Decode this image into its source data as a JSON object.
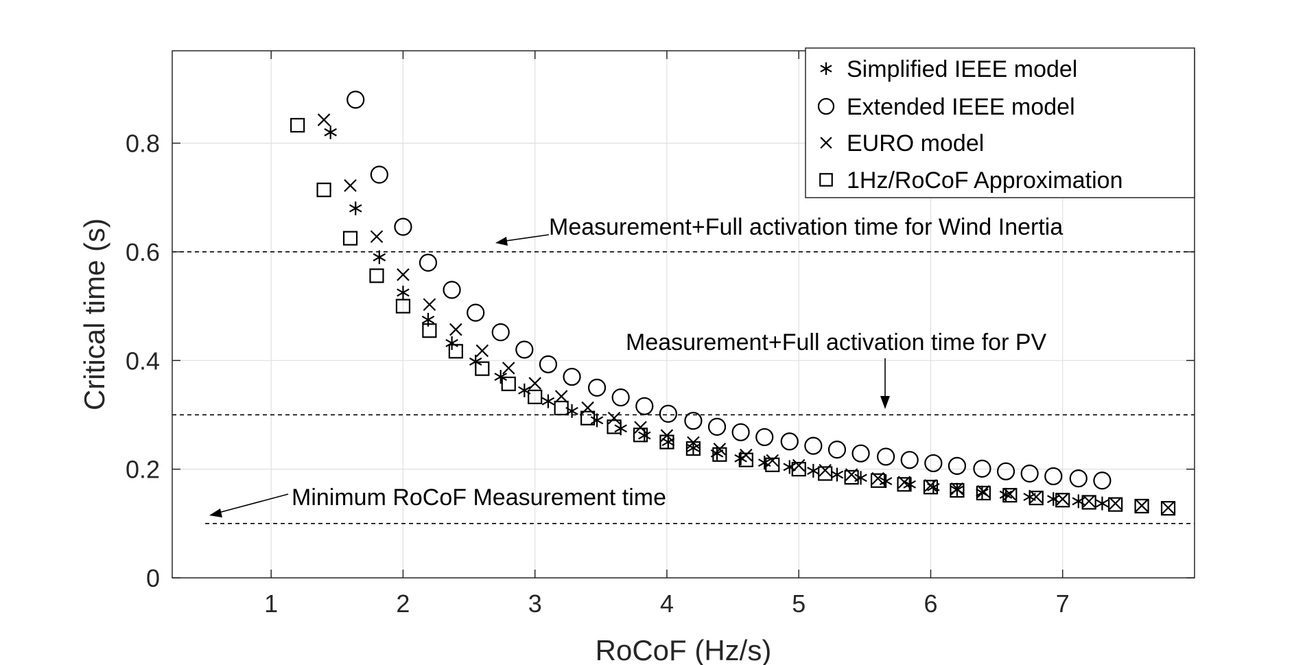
{
  "chart_data": {
    "type": "scatter",
    "xlabel": "RoCoF (Hz/s)",
    "ylabel": "Critical time (s)",
    "xlim": [
      0.25,
      8.0
    ],
    "ylim": [
      0,
      0.97
    ],
    "xticks": [
      1,
      2,
      3,
      4,
      5,
      6,
      7
    ],
    "yticks": [
      0,
      0.2,
      0.4,
      0.6,
      0.8
    ],
    "xtick_labels": [
      "1",
      "2",
      "3",
      "4",
      "5",
      "6",
      "7"
    ],
    "ytick_labels": [
      "0",
      "0.2",
      "0.4",
      "0.6",
      "0.8"
    ],
    "grid": true,
    "legend_position": "top-right",
    "series": [
      {
        "name": "Simplified IEEE model",
        "marker": "asterisk",
        "x": [
          1.45,
          1.64,
          1.82,
          2.0,
          2.19,
          2.37,
          2.55,
          2.74,
          2.92,
          3.1,
          3.28,
          3.47,
          3.65,
          3.83,
          4.01,
          4.2,
          4.38,
          4.56,
          4.74,
          4.93,
          5.11,
          5.29,
          5.47,
          5.66,
          5.84,
          6.02,
          6.2,
          6.39,
          6.57,
          6.75,
          6.93,
          7.12,
          7.3
        ],
        "y": [
          0.82,
          0.68,
          0.59,
          0.525,
          0.475,
          0.432,
          0.398,
          0.37,
          0.345,
          0.325,
          0.307,
          0.29,
          0.275,
          0.262,
          0.25,
          0.239,
          0.229,
          0.22,
          0.212,
          0.204,
          0.197,
          0.19,
          0.184,
          0.178,
          0.172,
          0.167,
          0.162,
          0.157,
          0.153,
          0.149,
          0.145,
          0.141,
          0.137
        ]
      },
      {
        "name": "Extended IEEE model",
        "marker": "circle",
        "x": [
          1.64,
          1.82,
          2.0,
          2.19,
          2.37,
          2.55,
          2.74,
          2.92,
          3.1,
          3.28,
          3.47,
          3.65,
          3.83,
          4.01,
          4.2,
          4.38,
          4.56,
          4.74,
          4.93,
          5.11,
          5.29,
          5.47,
          5.66,
          5.84,
          6.02,
          6.2,
          6.39,
          6.57,
          6.75,
          6.93,
          7.12,
          7.3
        ],
        "y": [
          0.88,
          0.742,
          0.646,
          0.58,
          0.53,
          0.488,
          0.452,
          0.42,
          0.393,
          0.37,
          0.35,
          0.332,
          0.316,
          0.302,
          0.289,
          0.278,
          0.268,
          0.259,
          0.251,
          0.243,
          0.236,
          0.229,
          0.223,
          0.217,
          0.211,
          0.206,
          0.201,
          0.196,
          0.192,
          0.187,
          0.183,
          0.179
        ]
      },
      {
        "name": "EURO model",
        "marker": "x",
        "x": [
          1.4,
          1.6,
          1.8,
          2.0,
          2.2,
          2.4,
          2.6,
          2.8,
          3.0,
          3.2,
          3.4,
          3.6,
          3.8,
          4.0,
          4.2,
          4.4,
          4.6,
          4.8,
          5.0,
          5.2,
          5.4,
          5.6,
          5.8,
          6.0,
          6.2,
          6.4,
          6.6,
          6.8,
          7.0,
          7.2,
          7.4,
          7.6,
          7.8
        ],
        "y": [
          0.843,
          0.722,
          0.628,
          0.558,
          0.503,
          0.457,
          0.418,
          0.386,
          0.358,
          0.334,
          0.313,
          0.294,
          0.277,
          0.262,
          0.249,
          0.237,
          0.226,
          0.216,
          0.207,
          0.198,
          0.19,
          0.183,
          0.176,
          0.17,
          0.164,
          0.159,
          0.154,
          0.149,
          0.145,
          0.141,
          0.137,
          0.133,
          0.129
        ]
      },
      {
        "name": "1Hz/RoCoF Approximation",
        "marker": "square",
        "x": [
          1.2,
          1.4,
          1.6,
          1.8,
          2.0,
          2.2,
          2.4,
          2.6,
          2.8,
          3.0,
          3.2,
          3.4,
          3.6,
          3.8,
          4.0,
          4.2,
          4.4,
          4.6,
          4.8,
          5.0,
          5.2,
          5.4,
          5.6,
          5.8,
          6.0,
          6.2,
          6.4,
          6.6,
          6.8,
          7.0,
          7.2,
          7.4,
          7.6,
          7.8
        ],
        "y": [
          0.833,
          0.714,
          0.625,
          0.556,
          0.5,
          0.455,
          0.417,
          0.385,
          0.357,
          0.333,
          0.3125,
          0.294,
          0.278,
          0.263,
          0.25,
          0.238,
          0.227,
          0.217,
          0.208,
          0.2,
          0.192,
          0.185,
          0.179,
          0.172,
          0.167,
          0.161,
          0.156,
          0.152,
          0.147,
          0.143,
          0.139,
          0.135,
          0.132,
          0.128
        ]
      }
    ],
    "reference_lines": [
      {
        "y": 0.6,
        "x_start": 0.25,
        "x_end": 8.0,
        "label": "Measurement+Full activation time for Wind Inertia"
      },
      {
        "y": 0.3,
        "x_start": 0.25,
        "x_end": 8.0,
        "label": "Measurement+Full activation time for PV"
      },
      {
        "y": 0.1,
        "x_start": 0.5,
        "x_end": 8.0,
        "label": "Minimum RoCoF Measurement time"
      }
    ]
  }
}
